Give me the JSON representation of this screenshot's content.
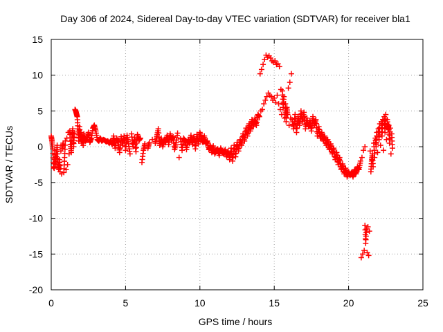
{
  "chart_data": {
    "type": "scatter",
    "title": "Day 306 of 2024, Sidereal Day-to-day VTEC variation (SDTVAR) for receiver bla1",
    "xlabel": "GPS time / hours",
    "ylabel": "SDTVAR / TECUs",
    "xlim": [
      0,
      25
    ],
    "ylim": [
      -20,
      15
    ],
    "xticks": [
      0,
      5,
      10,
      15,
      20,
      25
    ],
    "yticks": [
      -20,
      -15,
      -10,
      -5,
      0,
      5,
      10,
      15
    ],
    "grid": true,
    "marker": "+",
    "color": "#ff0000",
    "series": [
      {
        "name": "SDTVAR",
        "points": [
          [
            0.0,
            1.5
          ],
          [
            0.05,
            0.8
          ],
          [
            0.1,
            -0.3
          ],
          [
            0.15,
            -2.8
          ],
          [
            0.2,
            -3.0
          ],
          [
            0.25,
            -0.5
          ],
          [
            0.3,
            -2.5
          ],
          [
            0.35,
            -1.0
          ],
          [
            0.4,
            0.2
          ],
          [
            0.45,
            -2.2
          ],
          [
            0.5,
            -3.2
          ],
          [
            0.55,
            -1.8
          ],
          [
            0.6,
            -3.5
          ],
          [
            0.65,
            -0.6
          ],
          [
            0.7,
            -3.8
          ],
          [
            0.75,
            -0.2
          ],
          [
            0.8,
            0.5
          ],
          [
            0.85,
            -3.6
          ],
          [
            0.9,
            -1.5
          ],
          [
            0.95,
            0.8
          ],
          [
            1.0,
            -3.2
          ],
          [
            1.05,
            1.2
          ],
          [
            1.1,
            -2.5
          ],
          [
            1.15,
            2.0
          ],
          [
            1.2,
            -1.0
          ],
          [
            1.25,
            2.2
          ],
          [
            1.3,
            0.3
          ],
          [
            1.35,
            -0.8
          ],
          [
            1.4,
            1.5
          ],
          [
            1.45,
            2.5
          ],
          [
            1.5,
            0.0
          ],
          [
            1.55,
            1.8
          ],
          [
            1.6,
            5.2
          ],
          [
            1.65,
            5.0
          ],
          [
            1.7,
            4.6
          ],
          [
            1.75,
            4.2
          ],
          [
            1.8,
            2.5
          ],
          [
            1.85,
            0.8
          ],
          [
            1.9,
            2.8
          ],
          [
            1.95,
            1.2
          ],
          [
            2.0,
            2.0
          ],
          [
            2.05,
            0.5
          ],
          [
            2.1,
            1.5
          ],
          [
            2.15,
            0.2
          ],
          [
            2.2,
            1.8
          ],
          [
            2.3,
            0.8
          ],
          [
            2.4,
            1.0
          ],
          [
            2.5,
            2.0
          ],
          [
            2.6,
            0.6
          ],
          [
            2.7,
            1.2
          ],
          [
            2.8,
            2.6
          ],
          [
            2.9,
            3.0
          ],
          [
            3.0,
            2.2
          ],
          [
            3.1,
            1.0
          ],
          [
            3.2,
            0.8
          ],
          [
            3.3,
            1.2
          ],
          [
            3.4,
            0.8
          ],
          [
            3.5,
            1.0
          ],
          [
            3.6,
            0.9
          ],
          [
            3.7,
            0.7
          ],
          [
            3.8,
            0.8
          ],
          [
            3.9,
            0.5
          ],
          [
            4.0,
            0.8
          ],
          [
            4.1,
            0.3
          ],
          [
            4.2,
            1.5
          ],
          [
            4.3,
            -0.2
          ],
          [
            4.4,
            1.2
          ],
          [
            4.5,
            0.6
          ],
          [
            4.6,
            -0.8
          ],
          [
            4.7,
            1.4
          ],
          [
            4.8,
            0.2
          ],
          [
            4.9,
            1.5
          ],
          [
            5.0,
            -0.5
          ],
          [
            5.1,
            1.6
          ],
          [
            5.2,
            0.4
          ],
          [
            5.3,
            -1.0
          ],
          [
            5.4,
            1.8
          ],
          [
            5.5,
            0.0
          ],
          [
            5.6,
            1.3
          ],
          [
            5.7,
            -0.7
          ],
          [
            5.8,
            1.7
          ],
          [
            5.9,
            0.9
          ],
          [
            6.0,
            1.2
          ],
          [
            6.1,
            -2.2
          ],
          [
            6.2,
            -0.5
          ],
          [
            6.3,
            0.4
          ],
          [
            6.5,
            -0.2
          ],
          [
            6.6,
            0.6
          ],
          [
            6.8,
            1.0
          ],
          [
            7.0,
            0.5
          ],
          [
            7.1,
            1.4
          ],
          [
            7.2,
            2.5
          ],
          [
            7.3,
            0.2
          ],
          [
            7.4,
            1.2
          ],
          [
            7.5,
            0.0
          ],
          [
            7.6,
            1.0
          ],
          [
            7.7,
            0.6
          ],
          [
            7.8,
            1.6
          ],
          [
            7.9,
            0.3
          ],
          [
            8.0,
            1.8
          ],
          [
            8.1,
            0.9
          ],
          [
            8.2,
            1.4
          ],
          [
            8.3,
            -0.4
          ],
          [
            8.4,
            0.6
          ],
          [
            8.5,
            1.9
          ],
          [
            8.6,
            -1.5
          ],
          [
            8.7,
            1.1
          ],
          [
            8.8,
            -0.5
          ],
          [
            8.9,
            1.2
          ],
          [
            9.0,
            0.8
          ],
          [
            9.1,
            -0.4
          ],
          [
            9.2,
            1.0
          ],
          [
            9.3,
            0.5
          ],
          [
            9.4,
            1.6
          ],
          [
            9.5,
            0.3
          ],
          [
            9.6,
            1.4
          ],
          [
            9.7,
            -0.3
          ],
          [
            9.8,
            1.7
          ],
          [
            9.9,
            0.4
          ],
          [
            10.0,
            2.0
          ],
          [
            10.1,
            1.2
          ],
          [
            10.2,
            0.6
          ],
          [
            10.3,
            1.5
          ],
          [
            10.4,
            0.4
          ],
          [
            10.5,
            0.8
          ],
          [
            10.6,
            -0.4
          ],
          [
            10.7,
            0.2
          ],
          [
            10.8,
            -0.8
          ],
          [
            10.9,
            0.1
          ],
          [
            11.0,
            -1.0
          ],
          [
            11.1,
            -0.5
          ],
          [
            11.2,
            -0.3
          ],
          [
            11.3,
            -1.2
          ],
          [
            11.4,
            -0.2
          ],
          [
            11.5,
            -0.8
          ],
          [
            11.6,
            -1.0
          ],
          [
            11.7,
            -0.4
          ],
          [
            11.8,
            -1.4
          ],
          [
            11.9,
            -0.6
          ],
          [
            12.0,
            -1.8
          ],
          [
            12.1,
            -0.2
          ],
          [
            12.2,
            -2.0
          ],
          [
            12.3,
            0.2
          ],
          [
            12.4,
            -1.4
          ],
          [
            12.5,
            0.6
          ],
          [
            12.6,
            -0.6
          ],
          [
            12.7,
            1.0
          ],
          [
            12.8,
            0.2
          ],
          [
            12.9,
            1.8
          ],
          [
            13.0,
            0.8
          ],
          [
            13.1,
            2.6
          ],
          [
            13.2,
            1.5
          ],
          [
            13.3,
            3.2
          ],
          [
            13.4,
            2.2
          ],
          [
            13.5,
            3.8
          ],
          [
            13.6,
            2.8
          ],
          [
            13.7,
            4.0
          ],
          [
            13.8,
            3.0
          ],
          [
            13.9,
            4.5
          ],
          [
            14.0,
            4.2
          ],
          [
            14.05,
            10.2
          ],
          [
            14.1,
            5.0
          ],
          [
            14.15,
            10.8
          ],
          [
            14.2,
            5.2
          ],
          [
            14.25,
            11.5
          ],
          [
            14.3,
            6.0
          ],
          [
            14.35,
            12.2
          ],
          [
            14.4,
            6.5
          ],
          [
            14.45,
            12.8
          ],
          [
            14.5,
            7.0
          ],
          [
            14.55,
            12.5
          ],
          [
            14.6,
            7.5
          ],
          [
            14.65,
            12.7
          ],
          [
            14.7,
            7.2
          ],
          [
            14.75,
            12.4
          ],
          [
            14.8,
            7.0
          ],
          [
            14.85,
            12.0
          ],
          [
            14.9,
            6.5
          ],
          [
            14.95,
            11.8
          ],
          [
            15.0,
            6.8
          ],
          [
            15.05,
            12.0
          ],
          [
            15.1,
            6.2
          ],
          [
            15.15,
            11.5
          ],
          [
            15.2,
            7.2
          ],
          [
            15.25,
            11.6
          ],
          [
            15.3,
            6.0
          ],
          [
            15.35,
            11.2
          ],
          [
            15.4,
            5.2
          ],
          [
            15.45,
            8.0
          ],
          [
            15.5,
            4.5
          ],
          [
            15.55,
            7.8
          ],
          [
            15.6,
            5.5
          ],
          [
            15.65,
            7.0
          ],
          [
            15.7,
            4.0
          ],
          [
            15.75,
            6.0
          ],
          [
            15.8,
            3.5
          ],
          [
            15.85,
            5.5
          ],
          [
            15.9,
            4.5
          ],
          [
            15.95,
            8.2
          ],
          [
            16.0,
            3.0
          ],
          [
            16.05,
            9.0
          ],
          [
            16.1,
            4.0
          ],
          [
            16.15,
            10.2
          ],
          [
            16.2,
            3.8
          ],
          [
            16.3,
            2.5
          ],
          [
            16.4,
            4.5
          ],
          [
            16.5,
            2.0
          ],
          [
            16.6,
            4.2
          ],
          [
            16.7,
            3.0
          ],
          [
            16.8,
            5.0
          ],
          [
            16.9,
            3.5
          ],
          [
            17.0,
            4.8
          ],
          [
            17.1,
            2.5
          ],
          [
            17.2,
            4.0
          ],
          [
            17.3,
            2.8
          ],
          [
            17.4,
            3.6
          ],
          [
            17.5,
            2.2
          ],
          [
            17.6,
            4.2
          ],
          [
            17.7,
            3.0
          ],
          [
            17.8,
            3.8
          ],
          [
            17.9,
            1.5
          ],
          [
            18.0,
            2.8
          ],
          [
            18.1,
            1.2
          ],
          [
            18.2,
            2.0
          ],
          [
            18.3,
            0.8
          ],
          [
            18.4,
            1.5
          ],
          [
            18.5,
            0.2
          ],
          [
            18.6,
            1.0
          ],
          [
            18.7,
            -0.4
          ],
          [
            18.8,
            0.4
          ],
          [
            18.9,
            -1.0
          ],
          [
            19.0,
            -0.2
          ],
          [
            19.1,
            -1.8
          ],
          [
            19.2,
            -0.8
          ],
          [
            19.3,
            -2.5
          ],
          [
            19.4,
            -1.5
          ],
          [
            19.5,
            -3.2
          ],
          [
            19.6,
            -2.4
          ],
          [
            19.7,
            -3.8
          ],
          [
            19.8,
            -3.0
          ],
          [
            19.9,
            -4.2
          ],
          [
            20.0,
            -3.5
          ],
          [
            20.1,
            -4.0
          ],
          [
            20.2,
            -3.6
          ],
          [
            20.3,
            -4.2
          ],
          [
            20.4,
            -3.2
          ],
          [
            20.5,
            -3.8
          ],
          [
            20.6,
            -2.8
          ],
          [
            20.7,
            -3.2
          ],
          [
            20.8,
            -2.0
          ],
          [
            20.85,
            -15.5
          ],
          [
            20.9,
            -1.5
          ],
          [
            20.95,
            -15.0
          ],
          [
            21.0,
            -0.5
          ],
          [
            21.05,
            -14.5
          ],
          [
            21.1,
            0.0
          ],
          [
            21.1,
            -11.0
          ],
          [
            21.15,
            -13.5
          ],
          [
            21.2,
            -11.5
          ],
          [
            21.25,
            -14.8
          ],
          [
            21.3,
            -11.2
          ],
          [
            21.35,
            -15.2
          ],
          [
            21.4,
            -11.8
          ],
          [
            21.45,
            -0.6
          ],
          [
            21.5,
            -3.5
          ],
          [
            21.55,
            -2.0
          ],
          [
            21.6,
            -1.0
          ],
          [
            21.65,
            -2.8
          ],
          [
            21.7,
            0.5
          ],
          [
            21.75,
            -1.5
          ],
          [
            21.8,
            1.2
          ],
          [
            21.85,
            0.0
          ],
          [
            21.9,
            2.0
          ],
          [
            21.95,
            -0.8
          ],
          [
            22.0,
            2.5
          ],
          [
            22.05,
            1.0
          ],
          [
            22.1,
            3.2
          ],
          [
            22.15,
            0.2
          ],
          [
            22.2,
            3.5
          ],
          [
            22.25,
            1.5
          ],
          [
            22.3,
            3.8
          ],
          [
            22.35,
            -0.5
          ],
          [
            22.4,
            4.2
          ],
          [
            22.45,
            2.0
          ],
          [
            22.5,
            4.5
          ],
          [
            22.55,
            1.0
          ],
          [
            22.6,
            3.8
          ],
          [
            22.65,
            2.5
          ],
          [
            22.7,
            3.0
          ],
          [
            22.75,
            0.5
          ],
          [
            22.8,
            2.6
          ],
          [
            22.85,
            -1.0
          ],
          [
            22.9,
            1.8
          ],
          [
            22.95,
            -0.2
          ]
        ]
      }
    ]
  }
}
